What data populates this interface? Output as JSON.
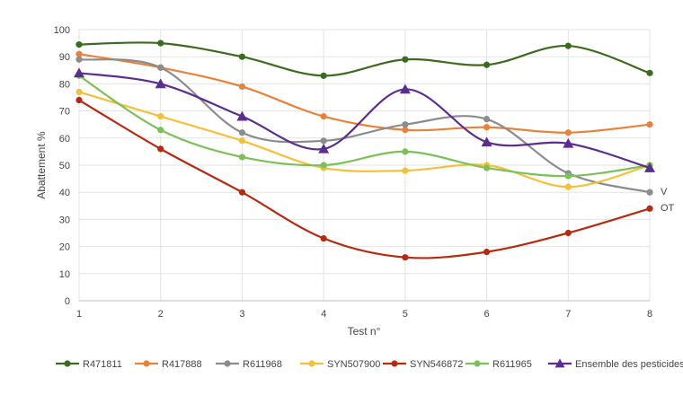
{
  "chart_data": {
    "type": "line",
    "title": "",
    "xlabel": "Test n°",
    "ylabel": "Abattement %",
    "x": [
      1,
      2,
      3,
      4,
      5,
      6,
      7,
      8
    ],
    "ylim": [
      0,
      100
    ],
    "yticks": [
      0,
      10,
      20,
      30,
      40,
      50,
      60,
      70,
      80,
      90,
      100
    ],
    "grid": true,
    "legend_position": "bottom",
    "side_labels": [
      "V",
      "OT"
    ],
    "series": [
      {
        "name": "R471811",
        "color": "#3a6b1f",
        "marker": "circle",
        "values": [
          94.5,
          95,
          90,
          83,
          89,
          87,
          94,
          84
        ]
      },
      {
        "name": "R417888",
        "color": "#e8823a",
        "marker": "circle",
        "values": [
          91,
          86,
          79,
          68,
          63,
          64,
          62,
          65
        ]
      },
      {
        "name": "R611968",
        "color": "#8c8c8c",
        "marker": "circle",
        "values": [
          89,
          86,
          62,
          59,
          65,
          67,
          47,
          40
        ]
      },
      {
        "name": "SYN507900",
        "color": "#f5bf3c",
        "marker": "circle",
        "values": [
          77,
          68,
          59,
          49,
          48,
          50,
          42,
          50
        ]
      },
      {
        "name": "SYN546872",
        "color": "#b52a10",
        "marker": "circle",
        "values": [
          74,
          56,
          40,
          23,
          16,
          18,
          25,
          34
        ]
      },
      {
        "name": "R611965",
        "color": "#7cc05a",
        "marker": "circle",
        "values": [
          83,
          63,
          53,
          50,
          55,
          49,
          46,
          50
        ]
      },
      {
        "name": "Ensemble des pesticides",
        "color": "#5b2d8e",
        "marker": "triangle",
        "values": [
          84,
          80,
          68,
          56,
          78,
          58.5,
          58,
          49
        ]
      }
    ]
  }
}
